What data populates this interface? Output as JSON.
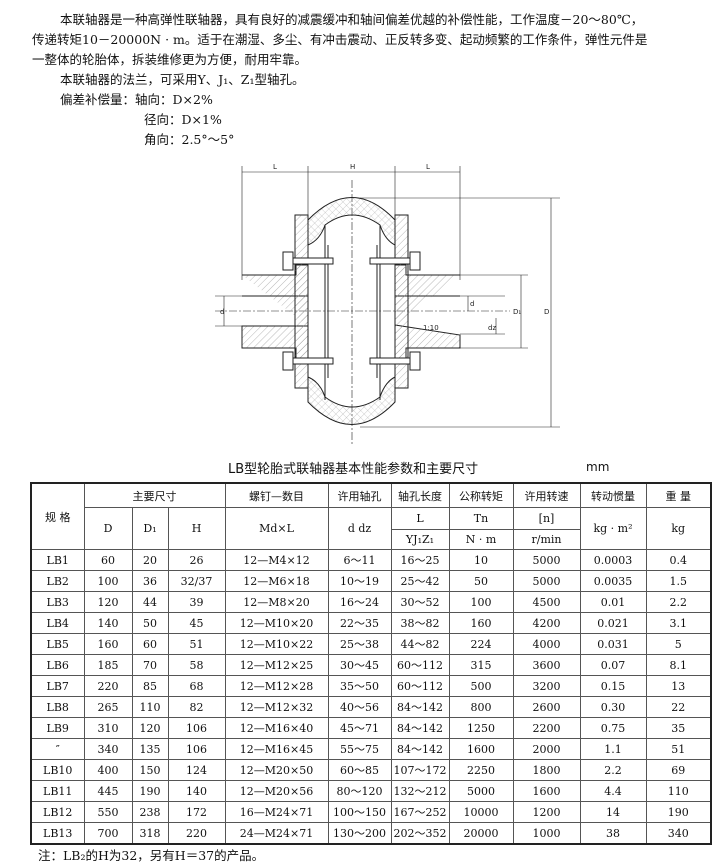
{
  "intro": {
    "line1": "本联轴器是一种高弹性联轴器，具有良好的减震缓冲和轴间偏差优越的补偿性能，工作温度－20～80℃，",
    "line2": "传递转矩10－20000N · m。适于在潮湿、多尘、有冲击震动、正反转多变、起动频繁的工作条件，弹性元件是",
    "line3": "一整体的轮胎体，拆装维修更为方便，耐用牢靠。",
    "line4": "本联轴器的法兰，可采用Y、J₁、Z₁型轴孔。",
    "line5": "偏差补偿量：轴向：D×2%",
    "line6": "径向：D×1%",
    "line7": "角向：2.5°～5°"
  },
  "drawing": {
    "labels": {
      "L": "L",
      "H": "H",
      "d": "d",
      "dz": "dz",
      "D1": "D₁",
      "D": "D",
      "taper": "1:10"
    }
  },
  "table": {
    "title": "LB型轮胎式联轴器基本性能参数和主要尺寸",
    "unit": "mm",
    "headers": {
      "spec": "规  格",
      "main_dims": "主要尺寸",
      "D": "D",
      "D1": "D₁",
      "H": "H",
      "screw": "螺钉—数目",
      "screw_sub": "Md×L",
      "bore": "许用轴孔",
      "bore_sub": "d  dz",
      "bore_len": "轴孔长度",
      "bore_len_sub1": "L",
      "bore_len_sub2": "YJ₁Z₁",
      "torque": "公称转矩",
      "torque_sub1": "Tn",
      "torque_sub2": "N · m",
      "speed": "许用转速",
      "speed_sub1": "[n]",
      "speed_sub2": "r/min",
      "inertia": "转动惯量",
      "inertia_sub": "kg · m²",
      "weight": "重  量",
      "weight_sub": "kg"
    },
    "rows": [
      [
        "LB1",
        "60",
        "20",
        "26",
        "12—M4×12",
        "6～11",
        "16～25",
        "10",
        "5000",
        "0.0003",
        "0.4"
      ],
      [
        "LB2",
        "100",
        "36",
        "32/37",
        "12—M6×18",
        "10～19",
        "25～42",
        "50",
        "5000",
        "0.0035",
        "1.5"
      ],
      [
        "LB3",
        "120",
        "44",
        "39",
        "12—M8×20",
        "16～24",
        "30～52",
        "100",
        "4500",
        "0.01",
        "2.2"
      ],
      [
        "LB4",
        "140",
        "50",
        "45",
        "12—M10×20",
        "22～35",
        "38～82",
        "160",
        "4200",
        "0.021",
        "3.1"
      ],
      [
        "LB5",
        "160",
        "60",
        "51",
        "12—M10×22",
        "25～38",
        "44～82",
        "224",
        "4000",
        "0.031",
        "5"
      ],
      [
        "LB6",
        "185",
        "70",
        "58",
        "12—M12×25",
        "30～45",
        "60～112",
        "315",
        "3600",
        "0.07",
        "8.1"
      ],
      [
        "LB7",
        "220",
        "85",
        "68",
        "12—M12×28",
        "35～50",
        "60～112",
        "500",
        "3200",
        "0.15",
        "13"
      ],
      [
        "LB8",
        "265",
        "110",
        "82",
        "12—M12×32",
        "40～56",
        "84～142",
        "800",
        "2600",
        "0.30",
        "22"
      ],
      [
        "LB9",
        "310",
        "120",
        "106",
        "12—M16×40",
        "45～71",
        "84～142",
        "1250",
        "2200",
        "0.75",
        "35"
      ],
      [
        "″",
        "340",
        "135",
        "106",
        "12—M16×45",
        "55～75",
        "84～142",
        "1600",
        "2000",
        "1.1",
        "51"
      ],
      [
        "LB10",
        "400",
        "150",
        "124",
        "12—M20×50",
        "60～85",
        "107～172",
        "2250",
        "1800",
        "2.2",
        "69"
      ],
      [
        "LB11",
        "445",
        "190",
        "140",
        "12—M20×56",
        "80～120",
        "132～212",
        "5000",
        "1600",
        "4.4",
        "110"
      ],
      [
        "LB12",
        "550",
        "238",
        "172",
        "16—M24×71",
        "100～150",
        "167～252",
        "10000",
        "1200",
        "14",
        "190"
      ],
      [
        "LB13",
        "700",
        "318",
        "220",
        "24—M24×71",
        "130～200",
        "202～352",
        "20000",
        "1000",
        "38",
        "340"
      ]
    ]
  },
  "note": "注：LB₂的H为32，另有H＝37的产品。"
}
